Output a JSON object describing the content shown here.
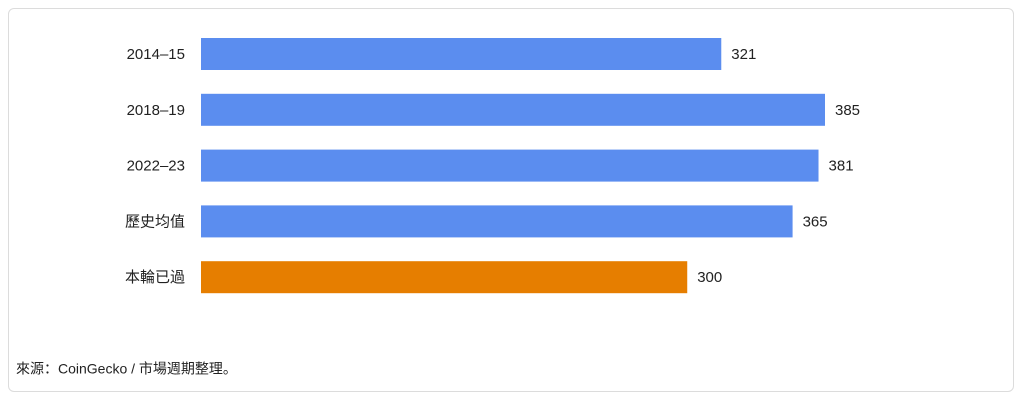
{
  "chart_data": {
    "type": "bar",
    "orientation": "horizontal",
    "categories": [
      "2014–15",
      "2018–19",
      "2022–23",
      "歷史均值",
      "本輪已過"
    ],
    "values": [
      321,
      385,
      381,
      365,
      300
    ],
    "colors": [
      "#5b8def",
      "#5b8def",
      "#5b8def",
      "#5b8def",
      "#e67e00"
    ],
    "source": "來源：CoinGecko / 市場週期整理。"
  }
}
